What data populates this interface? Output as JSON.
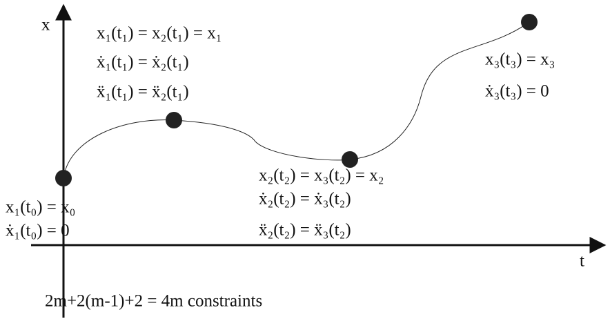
{
  "axes": {
    "y_label": "x",
    "x_label": "t"
  },
  "points": [
    {
      "labels": [
        "x₁(t₀) = x₀",
        "ẋ₁(t₀) = 0"
      ]
    },
    {
      "labels": [
        "x₁(t₁) = x₂(t₁) = x₁",
        "ẋ₁(t₁) = ẋ₂(t₁)",
        "ẍ₁(t₁) = ẍ₂(t₁)"
      ]
    },
    {
      "labels": [
        "x₂(t₂) = x₃(t₂) = x₂",
        "ẋ₂(t₂) = ẋ₃(t₂)",
        "ẍ₂(t₂) = ẍ₃(t₂)"
      ]
    },
    {
      "labels": [
        "x₃(t₃) = x₃",
        "ẋ₃(t₃) = 0"
      ]
    }
  ],
  "caption": "2m+2(m-1)+2 = 4m constraints"
}
